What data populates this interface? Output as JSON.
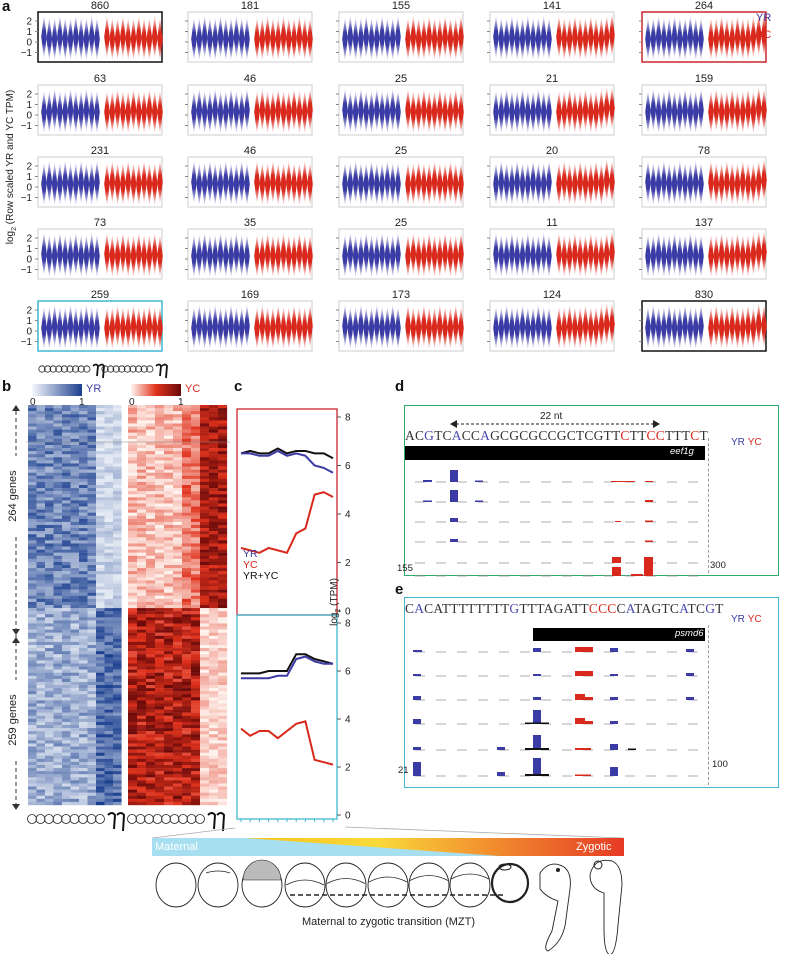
{
  "panel_labels": {
    "a": "a",
    "b": "b",
    "c": "c",
    "d": "d",
    "e": "e"
  },
  "colors": {
    "yr": "#3b3ba6",
    "yc": "#d9281c",
    "black": "#111111",
    "cyan_box": "#3fb8d0",
    "red_box": "#c8272f",
    "green_box": "#2eaa6a",
    "maternal": "#a8dff0",
    "zygotic": "#e8402a"
  },
  "panel_a": {
    "ylabel": "log2 (Row scaled YR and YC TPM)",
    "ylabel_base": "log",
    "ylabel_sub": "2",
    "ylabel_rest": " (Row scaled YR and YC TPM)",
    "yticks": [
      "2",
      "1",
      "0",
      "−1"
    ],
    "legend": {
      "yr": "YR",
      "yc": "YC"
    },
    "clusters": [
      [
        "860",
        "181",
        "155",
        "141",
        "264"
      ],
      [
        "63",
        "46",
        "25",
        "21",
        "159"
      ],
      [
        "231",
        "46",
        "25",
        "20",
        "78"
      ],
      [
        "73",
        "35",
        "25",
        "11",
        "137"
      ],
      [
        "259",
        "169",
        "173",
        "124",
        "830"
      ]
    ]
  },
  "panel_b": {
    "legend_yr": "YR",
    "legend_yc": "YC",
    "scale_min": "0",
    "scale_max": "1",
    "group1": "264 genes",
    "group2": "259 genes"
  },
  "panel_c": {
    "yticks": [
      "0",
      "2",
      "4",
      "6",
      "8"
    ],
    "ylabel_base": "log",
    "ylabel_sub": "2",
    "ylabel_rest": " (TPM)",
    "legend": [
      "YR",
      "YC",
      "YR+YC"
    ]
  },
  "chart_data": [
    {
      "type": "line",
      "title": "c (top, 264-gene cluster)",
      "ylabel": "log2 (TPM)",
      "ylim": [
        0,
        8
      ],
      "x": [
        1,
        2,
        3,
        4,
        5,
        6,
        7,
        8,
        9,
        10,
        11
      ],
      "series": [
        {
          "name": "YR",
          "values": [
            6.5,
            6.5,
            6.4,
            6.4,
            6.6,
            6.4,
            6.5,
            6.4,
            6.0,
            5.9,
            5.7
          ]
        },
        {
          "name": "YC",
          "values": [
            2.6,
            2.5,
            2.4,
            2.6,
            2.5,
            2.4,
            3.2,
            3.4,
            4.8,
            4.9,
            4.7
          ]
        },
        {
          "name": "YR+YC",
          "values": [
            6.5,
            6.6,
            6.5,
            6.5,
            6.7,
            6.5,
            6.6,
            6.6,
            6.5,
            6.5,
            6.3
          ]
        }
      ]
    },
    {
      "type": "line",
      "title": "c (bottom, 259-gene cluster)",
      "ylabel": "log2 (TPM)",
      "ylim": [
        0,
        8
      ],
      "x": [
        1,
        2,
        3,
        4,
        5,
        6,
        7,
        8,
        9,
        10,
        11
      ],
      "series": [
        {
          "name": "YR",
          "values": [
            5.7,
            5.7,
            5.7,
            5.7,
            5.8,
            5.8,
            6.5,
            6.6,
            6.4,
            6.3,
            6.3
          ]
        },
        {
          "name": "YC",
          "values": [
            3.6,
            3.3,
            3.5,
            3.5,
            3.2,
            3.5,
            3.8,
            3.9,
            2.3,
            2.2,
            2.1
          ]
        },
        {
          "name": "YR+YC",
          "values": [
            5.9,
            5.9,
            5.9,
            6.0,
            6.0,
            6.0,
            6.7,
            6.7,
            6.5,
            6.4,
            6.3
          ]
        }
      ]
    }
  ],
  "panel_d": {
    "span_label": "22 nt",
    "sequence": [
      {
        "t": "AC",
        "c": "k"
      },
      {
        "t": "G",
        "c": "b"
      },
      {
        "t": "TC",
        "c": "k"
      },
      {
        "t": "A",
        "c": "b"
      },
      {
        "t": "CC",
        "c": "k"
      },
      {
        "t": "A",
        "c": "b"
      },
      {
        "t": "GCGCGCCGCTCGTT",
        "c": "k"
      },
      {
        "t": "C",
        "c": "r"
      },
      {
        "t": "TT",
        "c": "k"
      },
      {
        "t": "CC",
        "c": "r"
      },
      {
        "t": "TTT",
        "c": "k"
      },
      {
        "t": "C",
        "c": "r"
      },
      {
        "t": "T",
        "c": "k"
      }
    ],
    "gene": "eef1g",
    "scale_top": "155",
    "scale_bottom": "0",
    "bar_scale_top": "300",
    "bar_scale_bottom": "0",
    "legend_yr": "YR",
    "legend_yc": "YC",
    "bars": [
      [
        0.55,
        0.3
      ],
      [
        0.5,
        0.3
      ],
      [
        0.5,
        0.3
      ],
      [
        0.45,
        0.3
      ],
      [
        0.08,
        0.6
      ],
      [
        0.12,
        0.7
      ]
    ]
  },
  "panel_e": {
    "sequence": [
      {
        "t": "C",
        "c": "k"
      },
      {
        "t": "A",
        "c": "b"
      },
      {
        "t": "CATTTTTTTT",
        "c": "k"
      },
      {
        "t": "G",
        "c": "b"
      },
      {
        "t": "TTTAGATT",
        "c": "k"
      },
      {
        "t": "CCC",
        "c": "r"
      },
      {
        "t": "C",
        "c": "k"
      },
      {
        "t": "A",
        "c": "b"
      },
      {
        "t": "TAGTC",
        "c": "k"
      },
      {
        "t": "A",
        "c": "b"
      },
      {
        "t": "TC",
        "c": "k"
      },
      {
        "t": "G",
        "c": "b"
      },
      {
        "t": "T",
        "c": "k"
      }
    ],
    "gene": "psmd6",
    "scale_top": "21",
    "scale_bottom": "0",
    "bar_scale_top": "100",
    "bar_scale_bottom": "0",
    "legend_yr": "YR",
    "legend_yc": "YC",
    "bars": [
      [
        0.35,
        0.08
      ],
      [
        0.45,
        0.08
      ],
      [
        0.5,
        0.08
      ],
      [
        0.4,
        0.08
      ],
      [
        0.45,
        0.06
      ],
      [
        0.8,
        0.05
      ]
    ]
  },
  "bottom": {
    "maternal": "Maternal",
    "zygotic": "Zygotic",
    "mzt": "Maternal to zygotic transition (MZT)"
  }
}
